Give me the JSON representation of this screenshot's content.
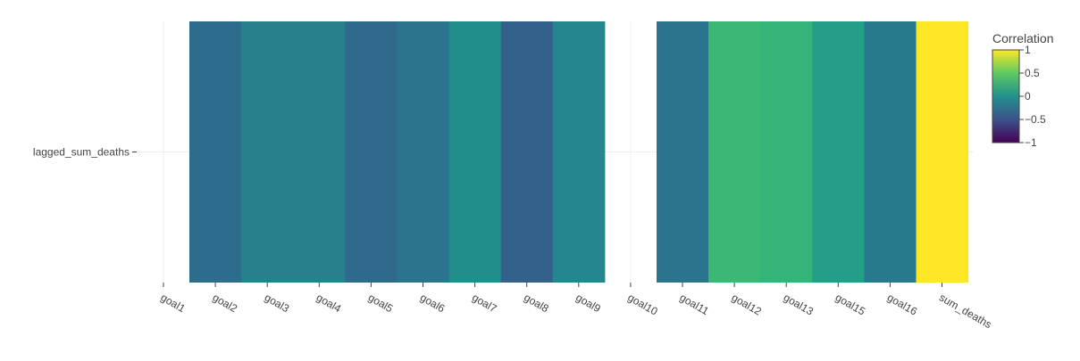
{
  "chart_data": {
    "type": "heatmap",
    "x": [
      "goal1",
      "goal2",
      "goal3",
      "goal4",
      "goal5",
      "goal6",
      "goal7",
      "goal8",
      "goal9",
      "goal10",
      "goal11",
      "goal12",
      "goal13",
      "goal15",
      "goal16",
      "sum_deaths"
    ],
    "y": [
      "lagged_sum_deaths"
    ],
    "z": [
      [
        null,
        -0.28,
        -0.12,
        -0.12,
        -0.3,
        -0.22,
        -0.02,
        -0.38,
        -0.08,
        null,
        -0.22,
        0.35,
        0.32,
        0.12,
        -0.18,
        1.0
      ]
    ],
    "colorscale": "Viridis",
    "zrange": [
      -1,
      1
    ],
    "colorbar": {
      "title": "Correlation",
      "tickvals": [
        1,
        0.5,
        0,
        -0.5,
        -1
      ],
      "ticktext": [
        "1",
        "0.5",
        "0",
        "−0.5",
        "−1"
      ]
    },
    "grid": true
  }
}
